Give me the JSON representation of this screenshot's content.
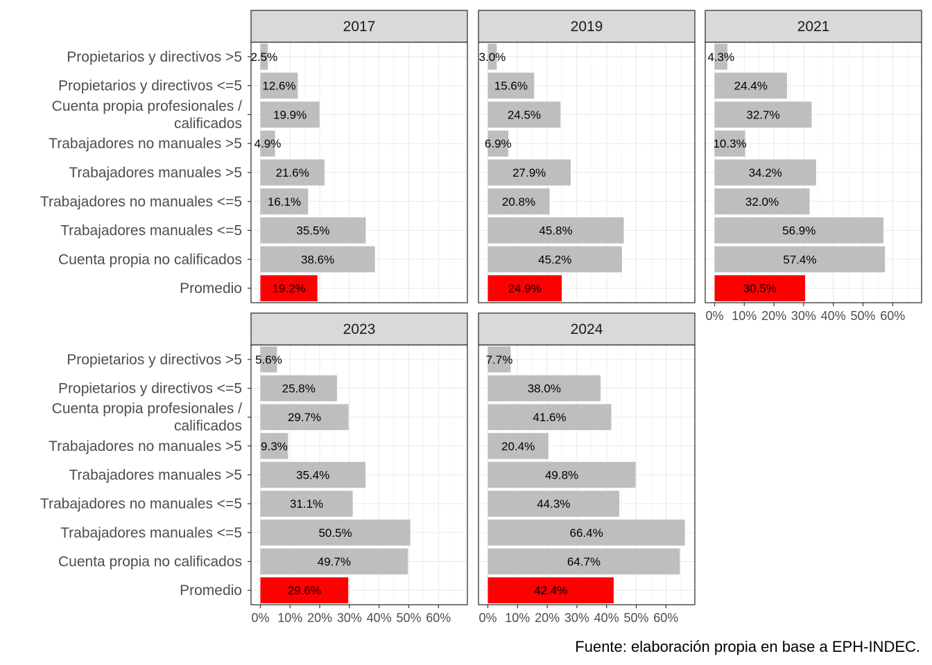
{
  "chart_data": {
    "type": "bar",
    "orientation": "horizontal",
    "categories": [
      "Propietarios y directivos >5",
      "Propietarios y directivos <=5",
      "Cuenta propia profesionales / calificados",
      "Trabajadores no manuales >5",
      "Trabajadores manuales >5",
      "Trabajadores no manuales <=5",
      "Trabajadores manuales <=5",
      "Cuenta propia no calificados",
      "Promedio"
    ],
    "category_lines": [
      [
        "Propietarios y directivos >5"
      ],
      [
        "Propietarios y directivos <=5"
      ],
      [
        "Cuenta propia profesionales /",
        "calificados"
      ],
      [
        "Trabajadores no manuales >5"
      ],
      [
        "Trabajadores manuales >5"
      ],
      [
        "Trabajadores no manuales <=5"
      ],
      [
        "Trabajadores manuales <=5"
      ],
      [
        "Cuenta propia no calificados"
      ],
      [
        "Promedio"
      ]
    ],
    "panels": [
      {
        "name": "2017",
        "values": [
          2.5,
          12.6,
          19.9,
          4.9,
          21.6,
          16.1,
          35.5,
          38.6,
          19.2
        ],
        "labels": [
          "2.5%",
          "12.6%",
          "19.9%",
          "4.9%",
          "21.6%",
          "16.1%",
          "35.5%",
          "38.6%",
          "19.2%"
        ]
      },
      {
        "name": "2019",
        "values": [
          3.0,
          15.6,
          24.5,
          6.9,
          27.9,
          20.8,
          45.8,
          45.2,
          24.9
        ],
        "labels": [
          "3.0%",
          "15.6%",
          "24.5%",
          "6.9%",
          "27.9%",
          "20.8%",
          "45.8%",
          "45.2%",
          "24.9%"
        ]
      },
      {
        "name": "2021",
        "values": [
          4.3,
          24.4,
          32.7,
          10.3,
          34.2,
          32.0,
          56.9,
          57.4,
          30.5
        ],
        "labels": [
          "4.3%",
          "24.4%",
          "32.7%",
          "10.3%",
          "34.2%",
          "32.0%",
          "56.9%",
          "57.4%",
          "30.5%"
        ]
      },
      {
        "name": "2023",
        "values": [
          5.6,
          25.8,
          29.7,
          9.3,
          35.4,
          31.1,
          50.5,
          49.7,
          29.6
        ],
        "labels": [
          "5.6%",
          "25.8%",
          "29.7%",
          "9.3%",
          "35.4%",
          "31.1%",
          "50.5%",
          "49.7%",
          "29.6%"
        ]
      },
      {
        "name": "2024",
        "values": [
          7.7,
          38.0,
          41.6,
          20.4,
          49.8,
          44.3,
          66.4,
          64.7,
          42.4
        ],
        "labels": [
          "7.7%",
          "38.0%",
          "41.6%",
          "20.4%",
          "49.8%",
          "44.3%",
          "66.4%",
          "64.7%",
          "42.4%"
        ]
      }
    ],
    "x_ticks": [
      "0%",
      "10%",
      "20%",
      "30%",
      "40%",
      "50%",
      "60%"
    ],
    "xlim": [
      0,
      70
    ],
    "bar_color": "#bebebe",
    "highlight_color": "#ff0000",
    "highlight_category": "Promedio",
    "grid": true,
    "caption": "Fuente: elaboración propia en base a EPH-INDEC."
  }
}
